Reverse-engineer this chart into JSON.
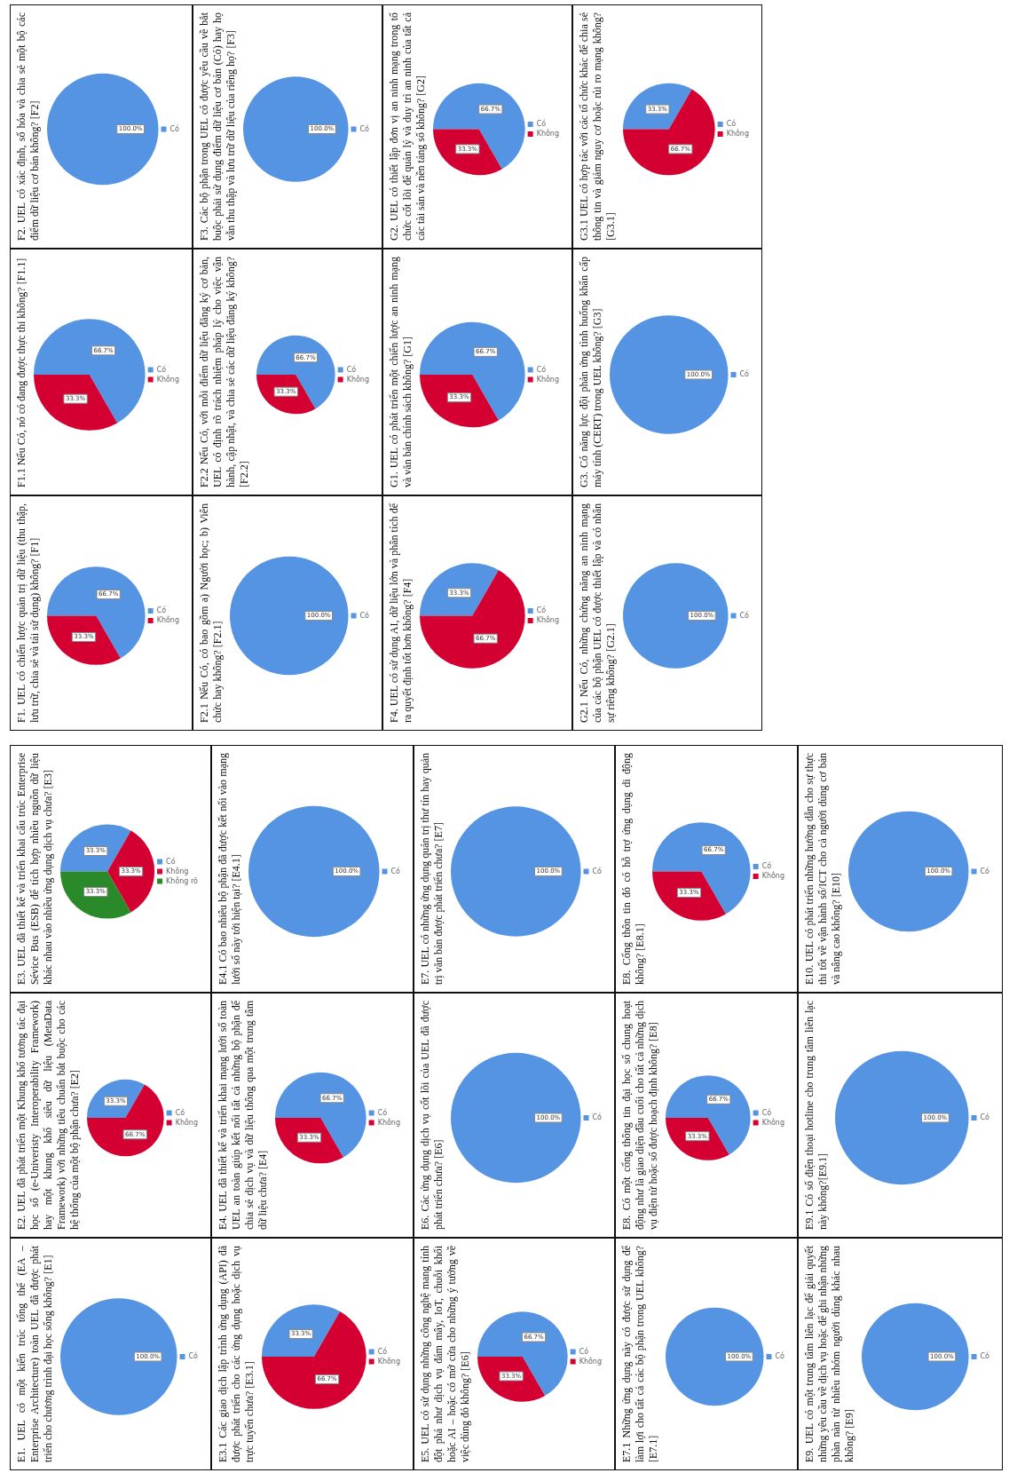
{
  "chart_data": [
    {
      "type": "pie",
      "title": "F2. UEL có xác định, số hóa và chia sẻ một bộ các điểm dữ liệu cơ bản không? [F2]",
      "categories": [
        "Có"
      ],
      "values": [
        100
      ],
      "colors": [
        "#5594e2"
      ],
      "value_labels": [
        "100.0%"
      ],
      "legend": "right"
    },
    {
      "type": "pie",
      "title": "F3. Các bộ phận trong UEL có được yêu cầu về bắt buộc phải sử dụng điểm dữ liệu cơ bản (Có) hay họ vẫn thu thập và lưu trữ dữ liệu của riêng họ? [F3]",
      "categories": [
        "Có"
      ],
      "values": [
        100
      ],
      "colors": [
        "#5594e2"
      ],
      "value_labels": [
        "100.0%"
      ],
      "legend": "right"
    },
    {
      "type": "pie",
      "title": "G2. UEL có thiết lập đơn vị an ninh mạng trong tổ chức cốt lõi để quản lý và duy trì an ninh của tất cả các tài sản và nền tảng số không? [G2]",
      "categories": [
        "Có",
        "Không"
      ],
      "values": [
        66.7,
        33.3
      ],
      "colors": [
        "#5594e2",
        "#d40032"
      ],
      "value_labels": [
        "66.7%",
        "33.3%"
      ],
      "legend": "right"
    },
    {
      "type": "pie",
      "title": "G3.1 UEL có hợp tác với các tổ chức khác để chia sẻ thông tin và giảm nguy cơ hoặc rủi ro mạng không? [G3.1]",
      "categories": [
        "Có",
        "Không"
      ],
      "values": [
        33.3,
        66.7
      ],
      "colors": [
        "#5594e2",
        "#d40032"
      ],
      "value_labels": [
        "33.3%",
        "66.7%"
      ],
      "legend": "right"
    },
    {
      "type": "pie",
      "title": "F1.1 Nếu Có, nó có đang được thực thi không? [F1.1]",
      "categories": [
        "Có",
        "Không"
      ],
      "values": [
        66.7,
        33.3
      ],
      "colors": [
        "#5594e2",
        "#d40032"
      ],
      "value_labels": [
        "66.7%",
        "33.3%"
      ],
      "legend": "right"
    },
    {
      "type": "pie",
      "title": "F2.2 Nếu Có, với mỗi điểm dữ liệu đăng ký cơ bản, UEL có định rõ trách nhiệm pháp lý cho việc vận hành, cập nhật, và chia sẻ các dữ liệu đăng ký không? [F2.2]",
      "categories": [
        "Có",
        "Không"
      ],
      "values": [
        66.7,
        33.3
      ],
      "colors": [
        "#5594e2",
        "#d40032"
      ],
      "value_labels": [
        "66.7%",
        "33.3%"
      ],
      "legend": "right"
    },
    {
      "type": "pie",
      "title": "G1. UEL có phát triển một chiến lược an ninh mạng và văn bản chính sách không? [G1]",
      "categories": [
        "Có",
        "Không"
      ],
      "values": [
        66.7,
        33.3
      ],
      "colors": [
        "#5594e2",
        "#d40032"
      ],
      "value_labels": [
        "66.7%",
        "33.3%"
      ],
      "legend": "right"
    },
    {
      "type": "pie",
      "title": "G3. Có năng lực đội phản ứng tình huống khẩn cấp máy tính (CERT) trong UEL không? [G3]",
      "categories": [
        "Có"
      ],
      "values": [
        100
      ],
      "colors": [
        "#5594e2"
      ],
      "value_labels": [
        "100.0%"
      ],
      "legend": "right"
    },
    {
      "type": "pie",
      "title": "F1. UEL có chiến lược quản trị dữ liệu (thu thập, lưu trữ, chia sẻ và tái sử dụng) không? [F1]",
      "categories": [
        "Có",
        "Không"
      ],
      "values": [
        66.7,
        33.3
      ],
      "colors": [
        "#5594e2",
        "#d40032"
      ],
      "value_labels": [
        "66.7%",
        "33.3%"
      ],
      "legend": "right"
    },
    {
      "type": "pie",
      "title": "F2.1 Nếu Có, có bao gồm a) Người học; b) Viên chức hay không? [F2.1]",
      "categories": [
        "Có"
      ],
      "values": [
        100
      ],
      "colors": [
        "#5594e2"
      ],
      "value_labels": [
        "100.0%"
      ],
      "legend": "right"
    },
    {
      "type": "pie",
      "title": "F4. UEL có sử dụng AI, dữ liệu lớn và phân tích để ra quyết định tốt hơn không? [F4]",
      "categories": [
        "Có",
        "Không"
      ],
      "values": [
        33.3,
        66.7
      ],
      "colors": [
        "#5594e2",
        "#d40032"
      ],
      "value_labels": [
        "33.3%",
        "66.7%"
      ],
      "legend": "right"
    },
    {
      "type": "pie",
      "title": "G2.1 Nếu Có, những chứng năng an ninh mạng của các bộ phận UEL có được thiết lập và có nhân sự riêng không? [G2.1]",
      "categories": [
        "Có"
      ],
      "values": [
        100
      ],
      "colors": [
        "#5594e2"
      ],
      "value_labels": [
        "100.0%"
      ],
      "legend": "right"
    },
    {
      "type": "pie",
      "title": "E3. UEL đã thiết kế và triển khai cấu trúc Enterprise Sévice Bus (ESB) để tích hợp nhiều nguồn dữ liệu khác nhau vào nhiều ứng dụng dịch vụ chưa? [E3]",
      "categories": [
        "Có",
        "Không",
        "Không rõ"
      ],
      "values": [
        33.3,
        33.3,
        33.3
      ],
      "colors": [
        "#5594e2",
        "#d40032",
        "#2a8a2a"
      ],
      "value_labels": [
        "33.3%",
        "33.3%",
        "33.3%"
      ],
      "legend": "right"
    },
    {
      "type": "pie",
      "title": "E4.1 Có bao nhiêu bộ phận đã được kết nối vào mạng lưới số này tới hiện tại? [E4.1]",
      "categories": [
        "Có"
      ],
      "values": [
        100
      ],
      "colors": [
        "#5594e2"
      ],
      "value_labels": [
        "100.0%"
      ],
      "legend": "right"
    },
    {
      "type": "pie",
      "title": "E7. UEL có những ứng dụng quản trị thư tín hay quản trị văn bản được phát triển chưa? [E7]",
      "categories": [
        "Có"
      ],
      "values": [
        100
      ],
      "colors": [
        "#5594e2"
      ],
      "value_labels": [
        "100.0%"
      ],
      "legend": "right"
    },
    {
      "type": "pie",
      "title": "E8. Cổng thôn tin đó có hỗ trợ ứng dụng di động không? [E8.1]",
      "categories": [
        "Có",
        "Không"
      ],
      "values": [
        66.7,
        33.3
      ],
      "colors": [
        "#5594e2",
        "#d40032"
      ],
      "value_labels": [
        "66.7%",
        "33.3%"
      ],
      "legend": "right"
    },
    {
      "type": "pie",
      "title": "E10. UEL có phát triển những hướng dẫn cho sự thực thi tốt về vận hành số/ICT cho cả người dùng cơ bản và nâng cao không? [E10]",
      "categories": [
        "Có"
      ],
      "values": [
        100
      ],
      "colors": [
        "#5594e2"
      ],
      "value_labels": [
        "100.0%"
      ],
      "legend": "right"
    },
    {
      "type": "pie",
      "title": "E2. UEL đã phát triển một Khung khổ tương tác đại học số (e-Univeristy Interoperability Framework) hay một khung khổ siêu dữ liệu (MetaData Framework) với những tiêu chuẩn bắt buộc cho các hệ thống của một bộ phận chưa? [E2]",
      "categories": [
        "Có",
        "Không"
      ],
      "values": [
        33.3,
        66.7
      ],
      "colors": [
        "#5594e2",
        "#d40032"
      ],
      "value_labels": [
        "33.3%",
        "66.7%"
      ],
      "legend": "right"
    },
    {
      "type": "pie",
      "title": "E4. UEL đã thiết kế và triển khai mạng lưới số toàn UEL an toàn giúp kết nối tất cả những bộ phận để chia sẻ dịch vụ và dữ liệu thông qua một trung tâm dữ liệu chưa? [E4]",
      "categories": [
        "Có",
        "Không"
      ],
      "values": [
        66.7,
        33.3
      ],
      "colors": [
        "#5594e2",
        "#d40032"
      ],
      "value_labels": [
        "66.7%",
        "33.3%"
      ],
      "legend": "right"
    },
    {
      "type": "pie",
      "title": "E6. Các ứng dụng dịch vụ cốt lõi của UEL đã được phát triển chưa? [E6]",
      "categories": [
        "Có"
      ],
      "values": [
        100
      ],
      "colors": [
        "#5594e2"
      ],
      "value_labels": [
        "100.0%"
      ],
      "legend": "right"
    },
    {
      "type": "pie",
      "title": "E8. Có một cổng thông tin đại học số chung hoạt động như là giao diện đầu cuối cho tất cả những dịch vụ điện tử hoặc số được hoạch định không? [E8]",
      "categories": [
        "Có",
        "Không"
      ],
      "values": [
        66.7,
        33.3
      ],
      "colors": [
        "#5594e2",
        "#d40032"
      ],
      "value_labels": [
        "66.7%",
        "33.3%"
      ],
      "legend": "right"
    },
    {
      "type": "pie",
      "title": "E9.1 Có số điện thoại hotline cho trung tâm liên lạc này không?[E9.1]",
      "categories": [
        "Có"
      ],
      "values": [
        100
      ],
      "colors": [
        "#5594e2"
      ],
      "value_labels": [
        "100.0%"
      ],
      "legend": "right"
    },
    {
      "type": "pie",
      "title": "E1. UEL có một kiến trúc tổng thể (EA – Enterprise Architecture) toàn UEL đã được phát triển cho chương trình đại học sống không? [E1]",
      "categories": [
        "Có"
      ],
      "values": [
        100
      ],
      "colors": [
        "#5594e2"
      ],
      "value_labels": [
        "100.0%"
      ],
      "legend": "right"
    },
    {
      "type": "pie",
      "title": "E3.1 Các giao dịch lập trình ứng dụng (API) đã được phát triển cho các ứng dụng hoặc dịch vụ trực tuyến chưa? [E3.1]",
      "categories": [
        "Có",
        "Không"
      ],
      "values": [
        33.3,
        66.7
      ],
      "colors": [
        "#5594e2",
        "#d40032"
      ],
      "value_labels": [
        "33.3%",
        "66.7%"
      ],
      "legend": "right"
    },
    {
      "type": "pie",
      "title": "E5. UEL có sử dụng những công nghệ mang tính đột phá như dịch vụ đám mây, IoT, chuỗi khối hoặc AI – hoặc có mở cửa cho những ý tưởng về việc dùng đó không? [E6]",
      "categories": [
        "Có",
        "Không"
      ],
      "values": [
        66.7,
        33.3
      ],
      "colors": [
        "#5594e2",
        "#d40032"
      ],
      "value_labels": [
        "66.7%",
        "33.3%"
      ],
      "legend": "right"
    },
    {
      "type": "pie",
      "title": "E7.1 Những ứng dụng này có được sử dụng để làm lợi cho tất cả các bộ phận trong UEL không? [E7.1]",
      "categories": [
        "Có"
      ],
      "values": [
        100
      ],
      "colors": [
        "#5594e2"
      ],
      "value_labels": [
        "100.0%"
      ],
      "legend": "right"
    },
    {
      "type": "pie",
      "title": "E9. UEL có một trung tâm liên lạc để giải quyết những yêu cầu về dịch vụ hoặc để ghi nhận những phàn nàn từ nhiều nhóm người dùng khác nhau không? [E9]",
      "categories": [
        "Có"
      ],
      "values": [
        100
      ],
      "colors": [
        "#5594e2"
      ],
      "value_labels": [
        "100.0%"
      ],
      "legend": "right"
    }
  ]
}
